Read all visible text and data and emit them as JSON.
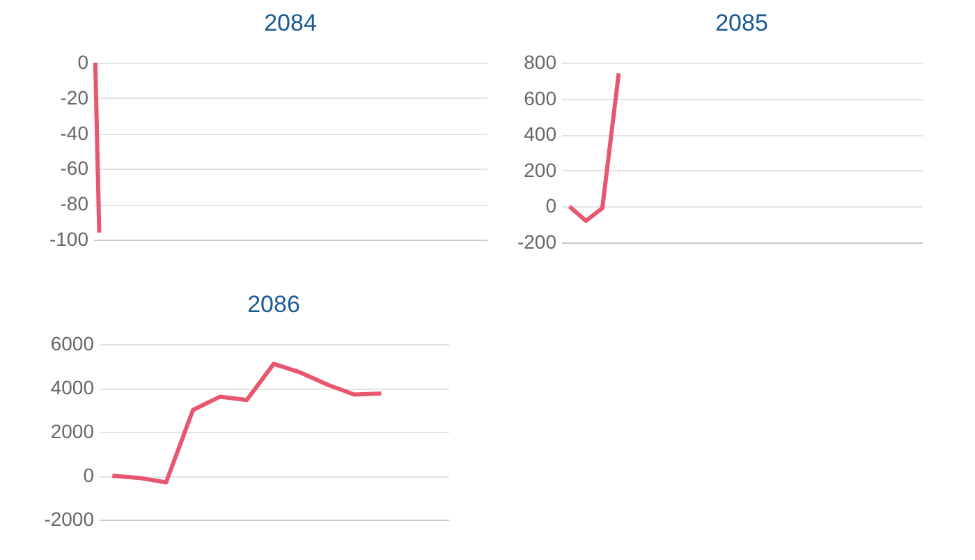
{
  "chart_data": [
    {
      "type": "line",
      "title": "2084",
      "categories": [
        null,
        null,
        null,
        null,
        null,
        null,
        null,
        null,
        null,
        null,
        null,
        null,
        null,
        null,
        null,
        null,
        null,
        null,
        null,
        null,
        null,
        null,
        null,
        null,
        null,
        null,
        null,
        null,
        null,
        null,
        null,
        null,
        null,
        null,
        null,
        null,
        null,
        null,
        null,
        null,
        null,
        null,
        null,
        null,
        null,
        null,
        null,
        null,
        null,
        null,
        null,
        null,
        null,
        null,
        null,
        null,
        null,
        null,
        null,
        null,
        null,
        null,
        null,
        null,
        null,
        null,
        null,
        null,
        null,
        null,
        null,
        null,
        null,
        null,
        null,
        null,
        null,
        null,
        null,
        null,
        null,
        null,
        null,
        null,
        null,
        null,
        null,
        null,
        null,
        null,
        null,
        null,
        null,
        null,
        null,
        null,
        null,
        null,
        null,
        null
      ],
      "series": [
        {
          "color": "#e8566f",
          "values": [
            0,
            -96,
            null,
            null,
            null,
            null,
            null,
            null,
            null,
            null,
            null,
            null,
            null,
            null,
            null,
            null,
            null,
            null,
            null,
            null,
            null,
            null,
            null,
            null,
            null,
            null,
            null,
            null,
            null,
            null,
            null,
            null,
            null,
            null,
            null,
            null,
            null,
            null,
            null,
            null,
            null,
            null,
            null,
            null,
            null,
            null,
            null,
            null,
            null,
            null,
            null,
            null,
            null,
            null,
            null,
            null,
            null,
            null,
            null,
            null,
            null,
            null,
            null,
            null,
            null,
            null,
            null,
            null,
            null,
            null,
            null,
            null,
            null,
            null,
            null,
            null,
            null,
            null,
            null,
            null,
            null,
            null,
            null,
            null,
            null,
            null,
            null,
            null,
            null,
            null,
            null,
            null,
            null,
            null,
            null,
            null,
            null,
            null,
            null,
            null
          ]
        }
      ],
      "ylim": [
        -100,
        0
      ],
      "yticks": [
        -100,
        -80,
        -60,
        -40,
        -20,
        0
      ],
      "grid": "y",
      "tick_labels": "y",
      "marker": "none"
    },
    {
      "type": "line",
      "title": "2085",
      "categories": [
        null,
        null,
        null,
        null,
        null,
        null,
        null,
        null,
        null,
        null,
        null,
        null,
        null,
        null,
        null,
        null,
        null,
        null,
        null,
        null,
        null,
        null
      ],
      "series": [
        {
          "color": "#e8566f",
          "values": [
            0,
            -80,
            -10,
            740,
            null,
            null,
            null,
            null,
            null,
            null,
            null,
            null,
            null,
            null,
            null,
            null,
            null,
            null,
            null,
            null,
            null,
            null
          ]
        }
      ],
      "ylim": [
        -200,
        800
      ],
      "yticks": [
        -200,
        0,
        200,
        400,
        600,
        800
      ],
      "grid": "y",
      "tick_labels": "y",
      "marker": "none"
    },
    {
      "type": "line",
      "title": "2086",
      "categories": [
        null,
        null,
        null,
        null,
        null,
        null,
        null,
        null,
        null,
        null,
        null,
        null,
        null
      ],
      "series": [
        {
          "color": "#e8566f",
          "values": [
            0,
            -100,
            -300,
            3000,
            3600,
            3450,
            5100,
            4700,
            4150,
            3700,
            3750,
            null,
            null
          ]
        }
      ],
      "ylim": [
        -2000,
        6000
      ],
      "yticks": [
        -2000,
        0,
        2000,
        4000,
        6000
      ],
      "grid": "y",
      "tick_labels": "y",
      "marker": "none"
    }
  ]
}
